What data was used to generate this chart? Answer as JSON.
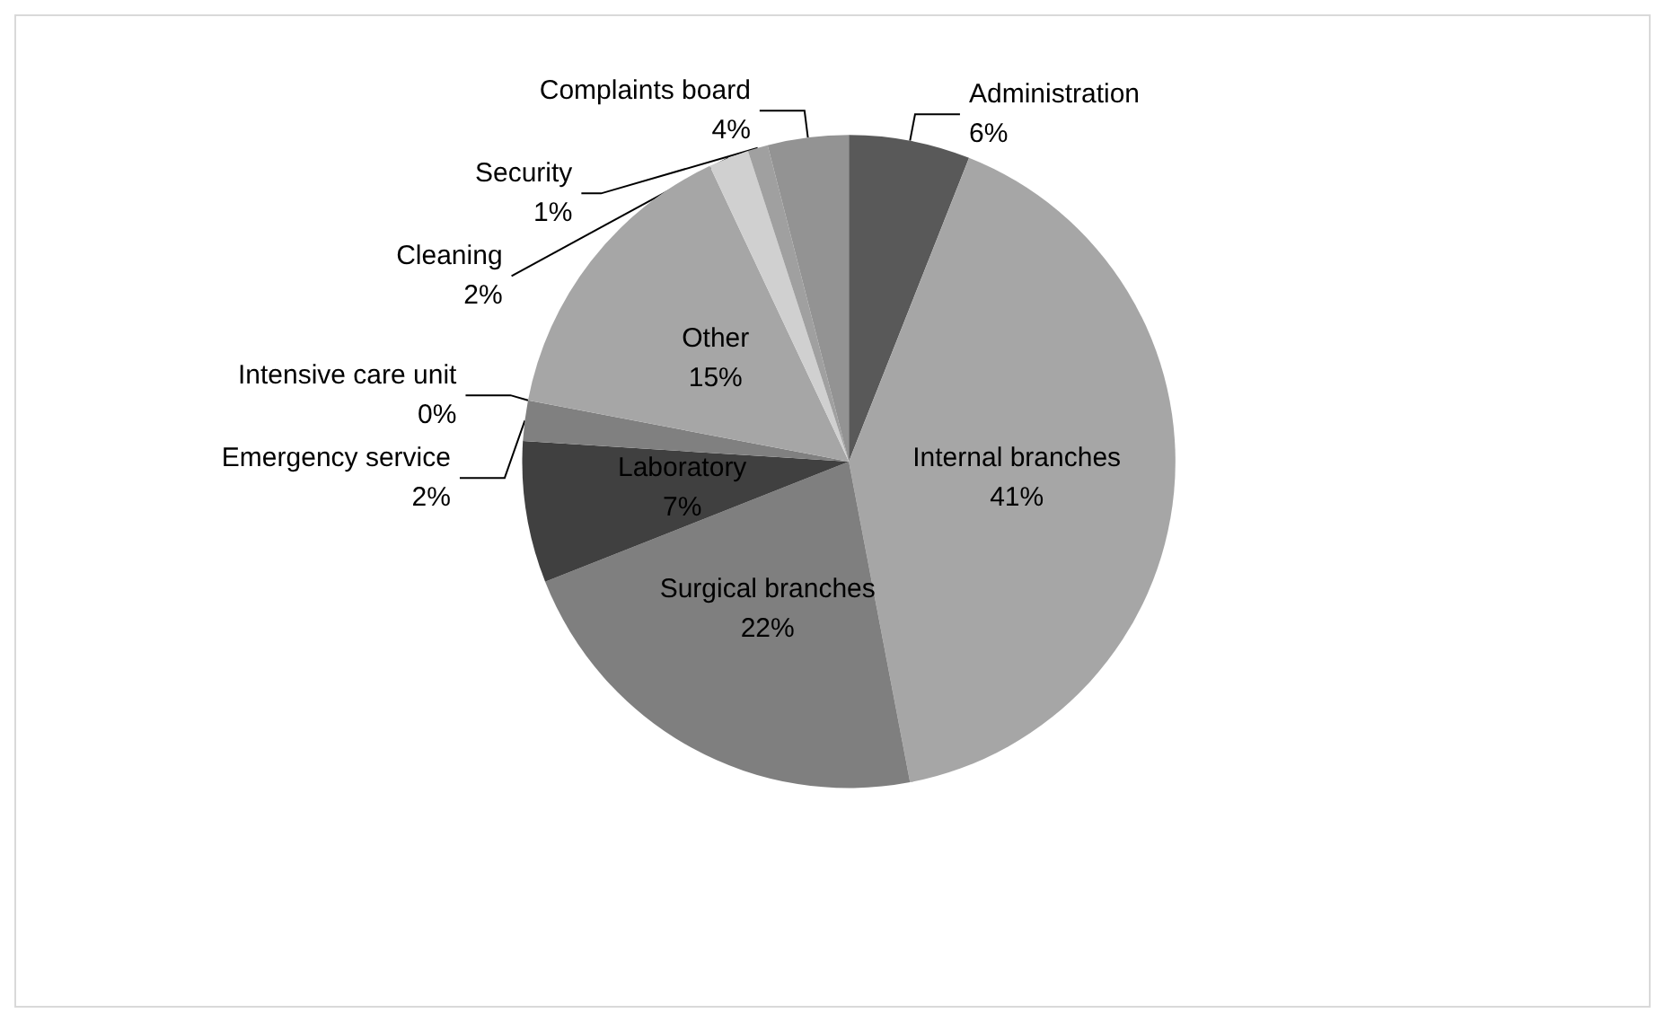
{
  "chart_data": {
    "type": "pie",
    "categories": [
      "Administration",
      "Internal branches",
      "Surgical branches",
      "Laboratory",
      "Emergency service",
      "Intensive care unit",
      "Other",
      "Cleaning",
      "Security",
      "Complaints board"
    ],
    "values": [
      6,
      41,
      22,
      7,
      2,
      0,
      15,
      2,
      1,
      4
    ],
    "value_labels": [
      "6%",
      "41%",
      "22%",
      "7%",
      "2%",
      "0%",
      "15%",
      "2%",
      "1%",
      "4%"
    ],
    "colors": [
      "#595959",
      "#a6a6a6",
      "#7f7f7f",
      "#404040",
      "#808080",
      "#d9d9d9",
      "#a6a6a6",
      "#d0d0d0",
      "#a0a0a0",
      "#939393"
    ],
    "legend": false
  }
}
